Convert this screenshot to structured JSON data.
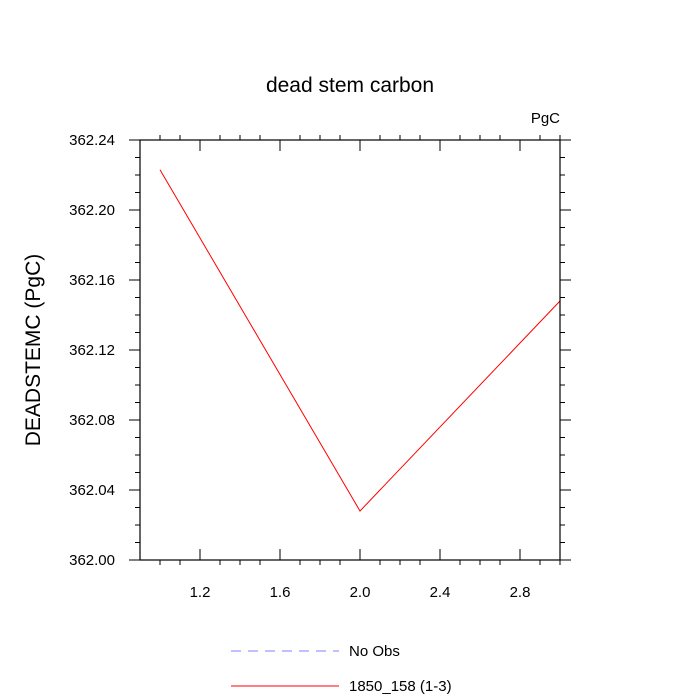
{
  "chart_data": {
    "type": "line",
    "title": "dead stem carbon",
    "units_label": "PgC",
    "xlabel": "",
    "ylabel": "DEADSTEMC  (PgC)",
    "xlim": [
      0.9,
      3.0
    ],
    "ylim": [
      362.0,
      362.24
    ],
    "x_ticks": [
      1.2,
      1.6,
      2.0,
      2.4,
      2.8
    ],
    "x_tick_labels": [
      "1.2",
      "1.6",
      "2.0",
      "2.4",
      "2.8"
    ],
    "y_ticks": [
      362.0,
      362.04,
      362.08,
      362.12,
      362.16,
      362.2,
      362.24
    ],
    "y_tick_labels": [
      "362.00",
      "362.04",
      "362.08",
      "362.12",
      "362.16",
      "362.20",
      "362.24"
    ],
    "grid": false,
    "legend_position": "bottom",
    "series": [
      {
        "name": "No Obs",
        "color": "#8080ff",
        "dash": "dashed",
        "x": [],
        "y": []
      },
      {
        "name": "1850_158 (1-3)",
        "color": "#ff0000",
        "dash": "solid",
        "x": [
          1.0,
          2.0,
          3.0
        ],
        "y": [
          362.223,
          362.028,
          362.148
        ]
      }
    ]
  }
}
